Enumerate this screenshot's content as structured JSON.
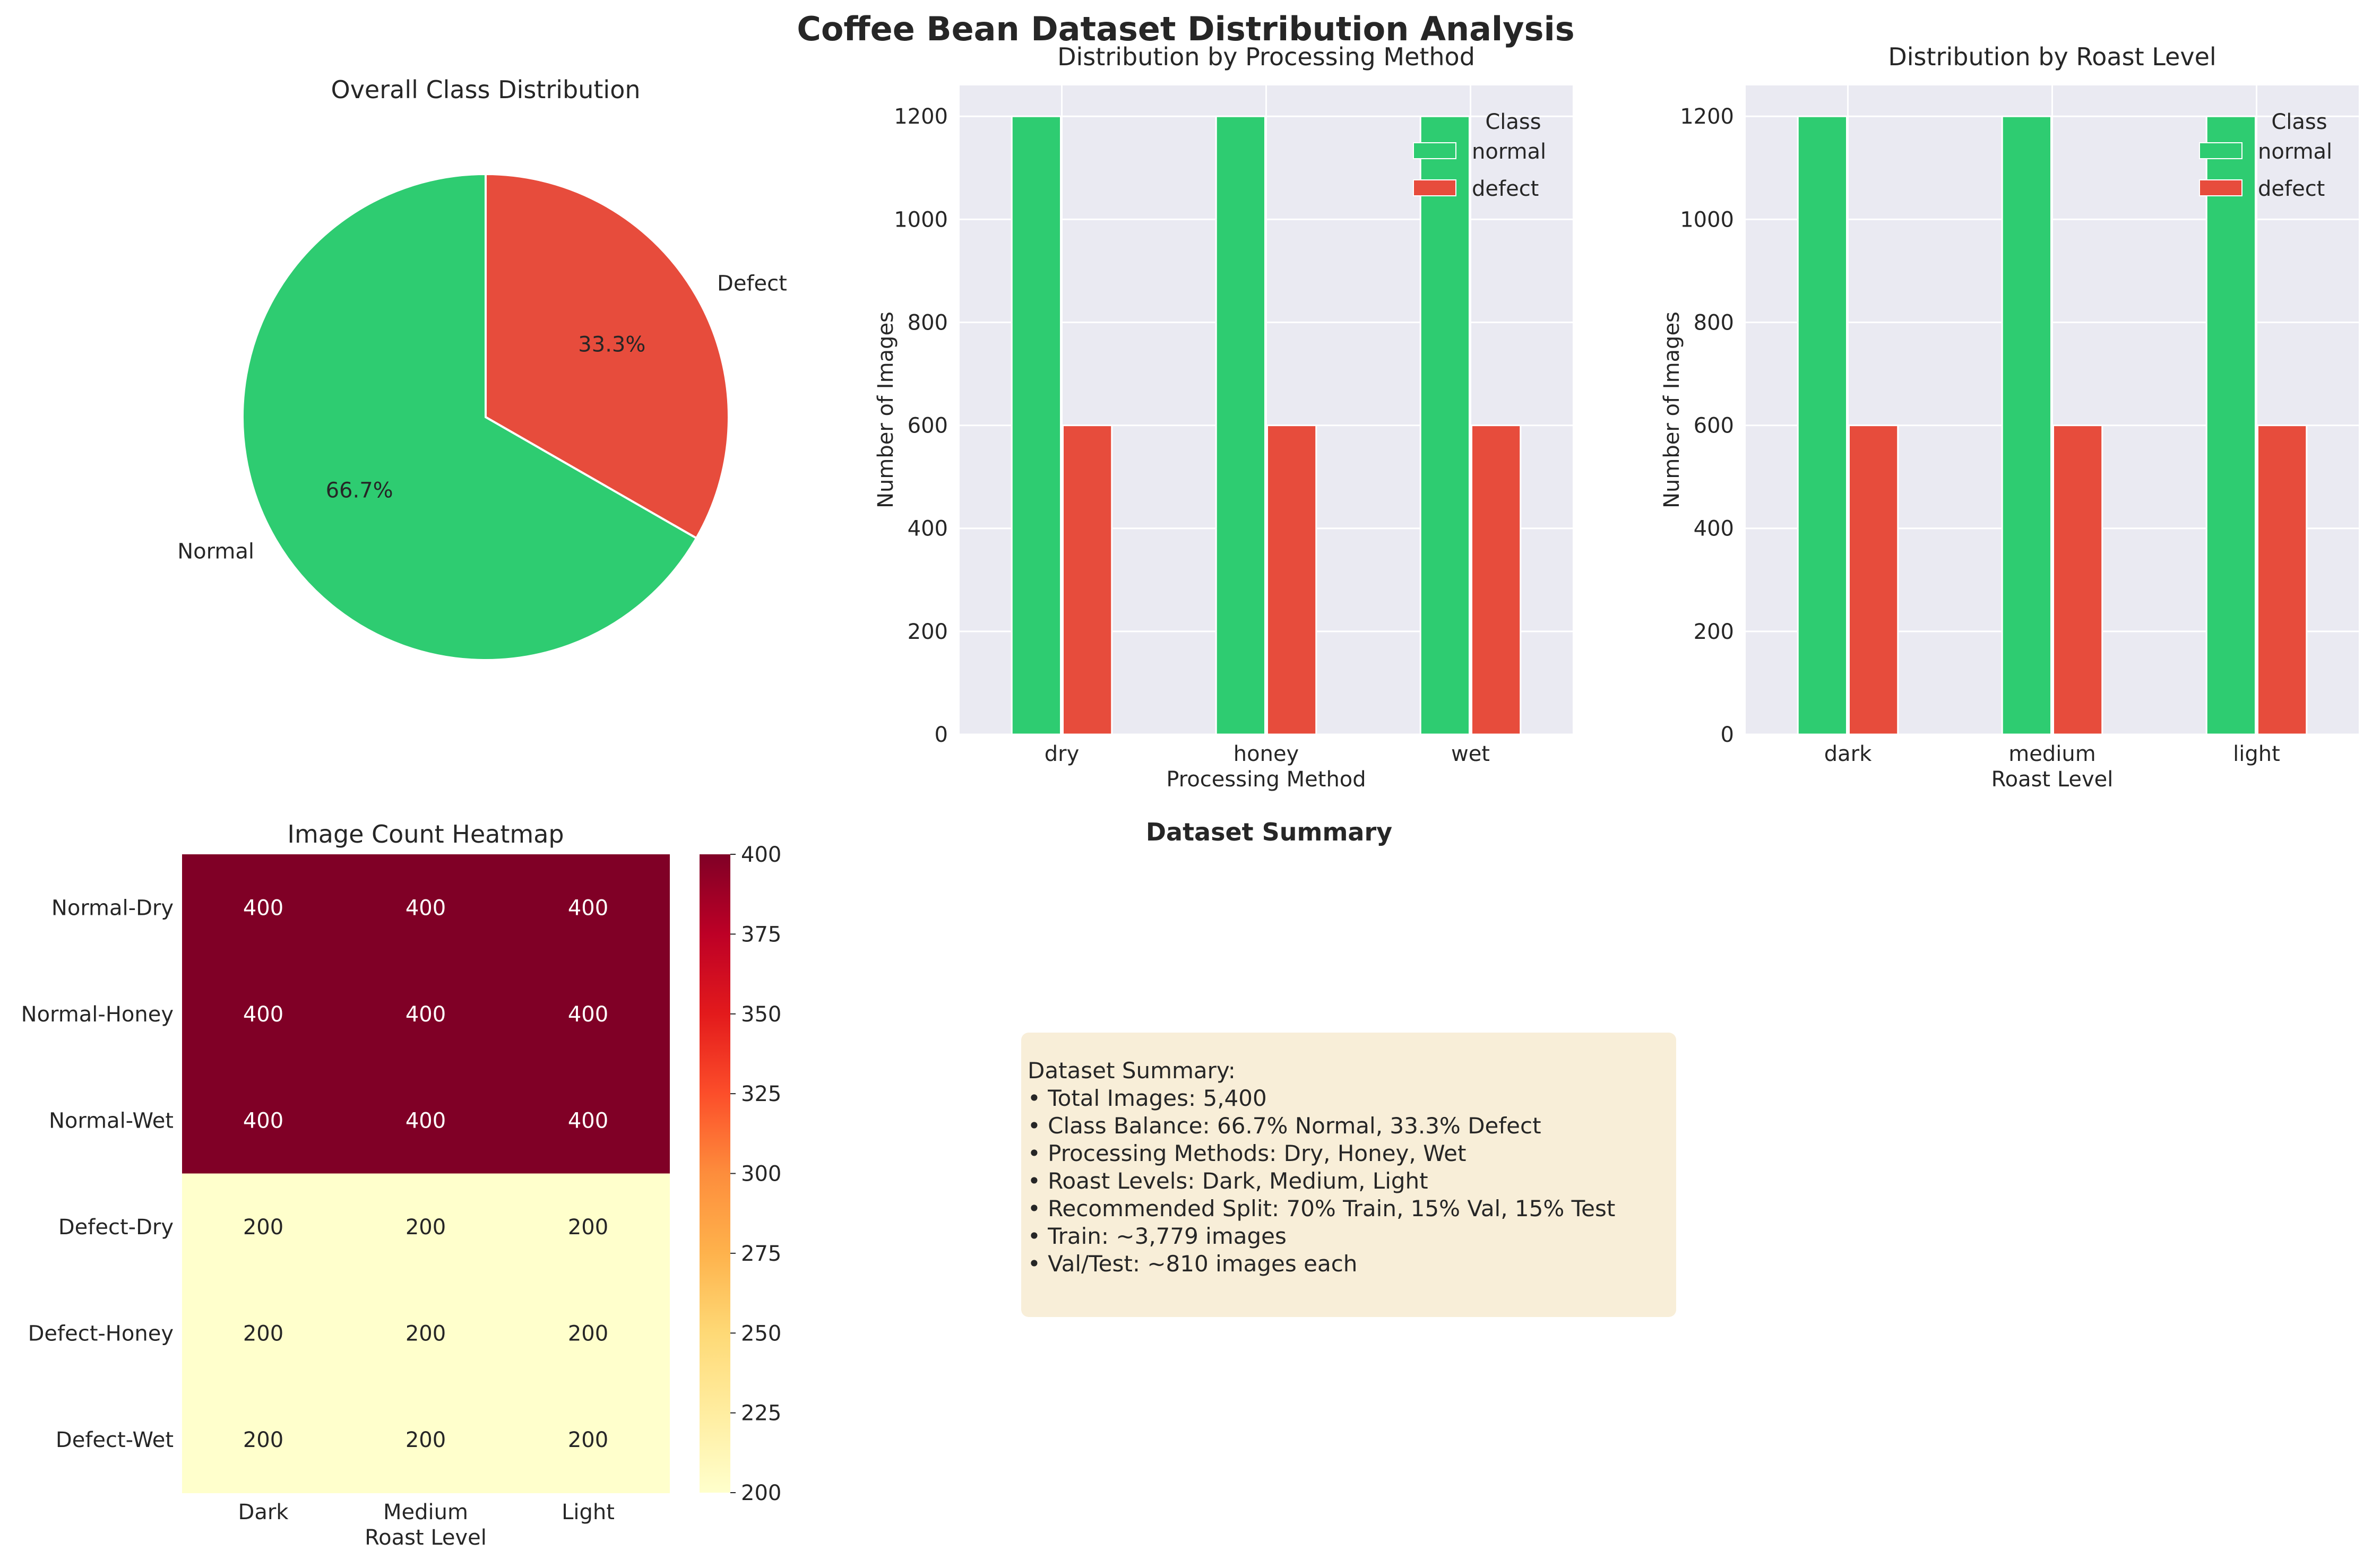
{
  "figure": {
    "title": "Coffee Bean Dataset Distribution Analysis"
  },
  "colors": {
    "normal": "#2ecc71",
    "defect": "#e74c3c",
    "panel_bg": "#eaeaf2",
    "summary_bg": "#f8eed8"
  },
  "chart_data": [
    {
      "type": "pie",
      "title": "Overall Class Distribution",
      "labels": [
        "Normal",
        "Defect"
      ],
      "values": [
        66.7,
        33.3
      ],
      "pct_labels": [
        "66.7%",
        "33.3%"
      ],
      "colors": [
        "#2ecc71",
        "#e74c3c"
      ]
    },
    {
      "type": "bar",
      "title": "Distribution by Processing Method",
      "xlabel": "Processing Method",
      "ylabel": "Number of Images",
      "categories": [
        "dry",
        "honey",
        "wet"
      ],
      "series": [
        {
          "name": "normal",
          "values": [
            1200,
            1200,
            1200
          ],
          "color": "#2ecc71"
        },
        {
          "name": "defect",
          "values": [
            600,
            600,
            600
          ],
          "color": "#e74c3c"
        }
      ],
      "ylim": [
        0,
        1260
      ],
      "yticks": [
        0,
        200,
        400,
        600,
        800,
        1000,
        1200
      ],
      "legend_title": "Class",
      "legend": "upper right",
      "grid": true
    },
    {
      "type": "bar",
      "title": "Distribution by Roast Level",
      "xlabel": "Roast Level",
      "ylabel": "Number of Images",
      "categories": [
        "dark",
        "medium",
        "light"
      ],
      "series": [
        {
          "name": "normal",
          "values": [
            1200,
            1200,
            1200
          ],
          "color": "#2ecc71"
        },
        {
          "name": "defect",
          "values": [
            600,
            600,
            600
          ],
          "color": "#e74c3c"
        }
      ],
      "ylim": [
        0,
        1260
      ],
      "yticks": [
        0,
        200,
        400,
        600,
        800,
        1000,
        1200
      ],
      "legend_title": "Class",
      "legend": "upper right",
      "grid": true
    },
    {
      "type": "heatmap",
      "title": "Image Count Heatmap",
      "xlabel": "Roast Level",
      "columns": [
        "Dark",
        "Medium",
        "Light"
      ],
      "rows": [
        "Normal-Dry",
        "Normal-Honey",
        "Normal-Wet",
        "Defect-Dry",
        "Defect-Honey",
        "Defect-Wet"
      ],
      "values": [
        [
          400,
          400,
          400
        ],
        [
          400,
          400,
          400
        ],
        [
          400,
          400,
          400
        ],
        [
          200,
          200,
          200
        ],
        [
          200,
          200,
          200
        ],
        [
          200,
          200,
          200
        ]
      ],
      "colormap": "YlOrRd",
      "colorbar_range": [
        200,
        400
      ],
      "colorbar_ticks": [
        200,
        225,
        250,
        275,
        300,
        325,
        350,
        375,
        400
      ]
    }
  ],
  "summary": {
    "title": "Dataset Summary",
    "lines": [
      "Dataset Summary:",
      "• Total Images: 5,400",
      "• Class Balance: 66.7% Normal, 33.3% Defect",
      "• Processing Methods: Dry, Honey, Wet",
      "• Roast Levels: Dark, Medium, Light",
      "• Recommended Split: 70% Train, 15% Val, 15% Test",
      "• Train: ~3,779 images",
      "• Val/Test: ~810 images each"
    ]
  }
}
